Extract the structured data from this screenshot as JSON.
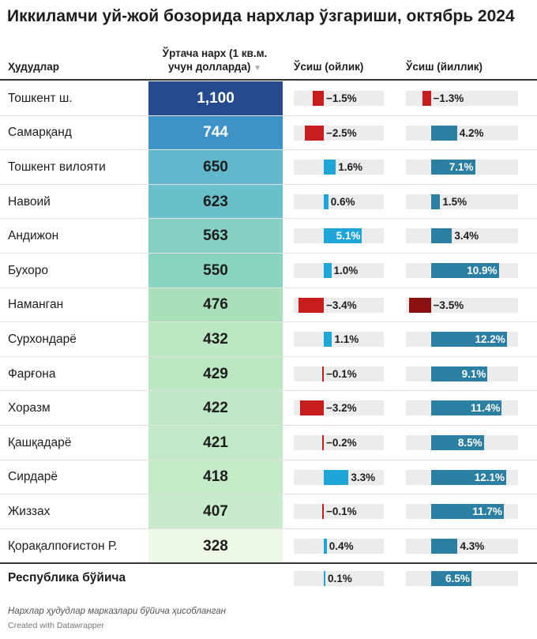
{
  "title": "Иккиламчи уй-жой бозорида нархлар ўзгариши, октябрь 2024",
  "headers": {
    "region": "Ҳудудлар",
    "price_line1": "Ўртача нарх (1 кв.м.",
    "price_line2": "учун долларда)",
    "price_sort_icon": "▼",
    "monthly": "Ўсиш (ойлик)",
    "yearly": "Ўсиш (йиллик)"
  },
  "colors": {
    "negative": "#c81d1d",
    "negative_dark": "#8b1111",
    "monthly_positive": "#1ea6d9",
    "yearly_positive": "#2b7fa2",
    "bar_background": "#ececec"
  },
  "chart_data": {
    "type": "table",
    "title": "Иккиламчи уй-жой бозорида нархлар ўзгариши, октябрь 2024",
    "columns": [
      "Ҳудудлар",
      "Ўртача нарх (1 кв.м. учун долларда)",
      "Ўсиш (ойлик)",
      "Ўсиш (йиллик)"
    ],
    "monthly_range": [
      -4,
      8
    ],
    "yearly_range": [
      -4,
      14
    ],
    "rows": [
      {
        "region": "Тошкент ш.",
        "price": 1100,
        "price_label": "1,100",
        "monthly": -1.5,
        "monthly_label": "−1.5%",
        "yearly": -1.3,
        "yearly_label": "−1.3%",
        "cell_color": "#254a8e",
        "text_color": "#ffffff"
      },
      {
        "region": "Самарқанд",
        "price": 744,
        "price_label": "744",
        "monthly": -2.5,
        "monthly_label": "−2.5%",
        "yearly": 4.2,
        "yearly_label": "4.2%",
        "cell_color": "#3d93c7",
        "text_color": "#ffffff"
      },
      {
        "region": "Тошкент вилояти",
        "price": 650,
        "price_label": "650",
        "monthly": 1.6,
        "monthly_label": "1.6%",
        "yearly": 7.1,
        "yearly_label": "7.1%",
        "cell_color": "#61b7cb",
        "text_color": "#1d1d1d"
      },
      {
        "region": "Навоий",
        "price": 623,
        "price_label": "623",
        "monthly": 0.6,
        "monthly_label": "0.6%",
        "yearly": 1.5,
        "yearly_label": "1.5%",
        "cell_color": "#69bfca",
        "text_color": "#1d1d1d"
      },
      {
        "region": "Андижон",
        "price": 563,
        "price_label": "563",
        "monthly": 5.1,
        "monthly_label": "5.1%",
        "yearly": 3.4,
        "yearly_label": "3.4%",
        "cell_color": "#85d0c2",
        "text_color": "#1d1d1d"
      },
      {
        "region": "Бухоро",
        "price": 550,
        "price_label": "550",
        "monthly": 1.0,
        "monthly_label": "1.0%",
        "yearly": 10.9,
        "yearly_label": "10.9%",
        "cell_color": "#89d3c1",
        "text_color": "#1d1d1d"
      },
      {
        "region": "Наманган",
        "price": 476,
        "price_label": "476",
        "monthly": -3.4,
        "monthly_label": "−3.4%",
        "yearly": -3.5,
        "yearly_label": "−3.5%",
        "cell_color": "#a9e0ba",
        "text_color": "#1d1d1d"
      },
      {
        "region": "Сурхондарё",
        "price": 432,
        "price_label": "432",
        "monthly": 1.1,
        "monthly_label": "1.1%",
        "yearly": 12.2,
        "yearly_label": "12.2%",
        "cell_color": "#bbe7c2",
        "text_color": "#1d1d1d"
      },
      {
        "region": "Фарғона",
        "price": 429,
        "price_label": "429",
        "monthly": -0.1,
        "monthly_label": "−0.1%",
        "yearly": 9.1,
        "yearly_label": "9.1%",
        "cell_color": "#bde7c3",
        "text_color": "#1d1d1d"
      },
      {
        "region": "Хоразм",
        "price": 422,
        "price_label": "422",
        "monthly": -3.2,
        "monthly_label": "−3.2%",
        "yearly": 11.4,
        "yearly_label": "11.4%",
        "cell_color": "#c1e8c6",
        "text_color": "#1d1d1d"
      },
      {
        "region": "Қашқадарё",
        "price": 421,
        "price_label": "421",
        "monthly": -0.2,
        "monthly_label": "−0.2%",
        "yearly": 8.5,
        "yearly_label": "8.5%",
        "cell_color": "#c2e9c7",
        "text_color": "#1d1d1d"
      },
      {
        "region": "Сирдарё",
        "price": 418,
        "price_label": "418",
        "monthly": 3.3,
        "monthly_label": "3.3%",
        "yearly": 12.1,
        "yearly_label": "12.1%",
        "cell_color": "#c4eac8",
        "text_color": "#1d1d1d"
      },
      {
        "region": "Жиззах",
        "price": 407,
        "price_label": "407",
        "monthly": -0.1,
        "monthly_label": "−0.1%",
        "yearly": 11.7,
        "yearly_label": "11.7%",
        "cell_color": "#c8ebcb",
        "text_color": "#1d1d1d"
      },
      {
        "region": "Қорақалпоғистон Р.",
        "price": 328,
        "price_label": "328",
        "monthly": 0.4,
        "monthly_label": "0.4%",
        "yearly": 4.3,
        "yearly_label": "4.3%",
        "cell_color": "#eef8e6",
        "text_color": "#1d1d1d"
      }
    ],
    "total": {
      "region": "Республика бўйича",
      "monthly": 0.1,
      "monthly_label": "0.1%",
      "yearly": 6.5,
      "yearly_label": "6.5%"
    }
  },
  "footnote": "Нархлар ҳудудлар марказлари бўйича ҳисобланган",
  "credit": "Created with Datawrapper"
}
